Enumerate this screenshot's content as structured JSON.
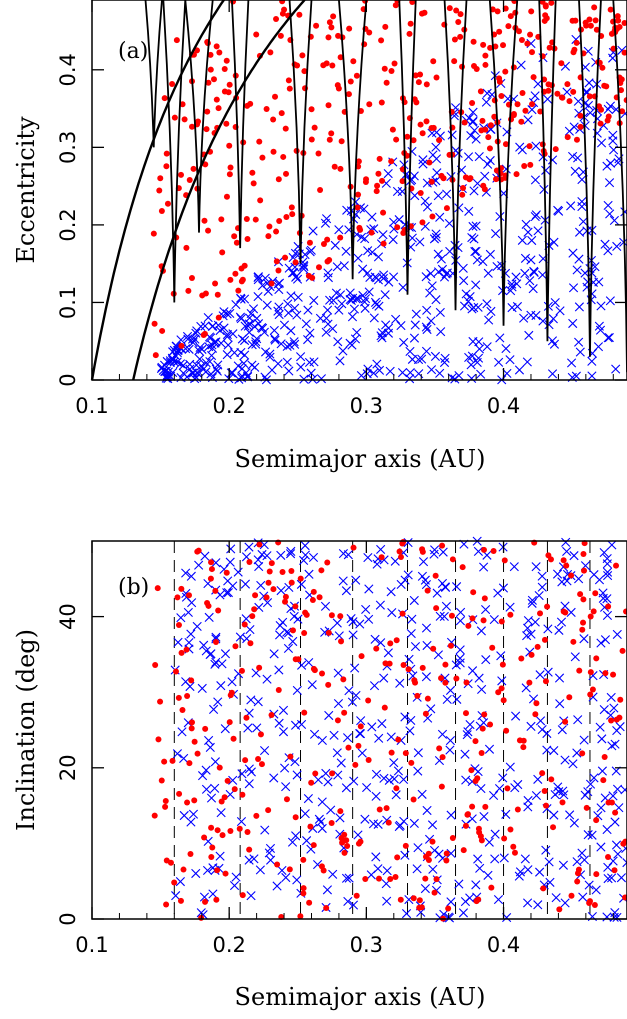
{
  "colors": {
    "high_e_points": "#ff0000",
    "low_e_points": "#0000ff",
    "curves": "#000000",
    "resonance_lines_b": "#000000"
  },
  "chart_data": [
    {
      "id": "a",
      "type": "scatter",
      "panel_label": "(a)",
      "xlabel": "Semimajor axis (AU)",
      "ylabel": "Eccentricity",
      "xlim": [
        0.1,
        0.49
      ],
      "ylim": [
        0,
        0.49
      ],
      "x_ticks": [
        0.1,
        0.2,
        0.3,
        0.4
      ],
      "x_tick_labels": [
        "0.1",
        "0.2",
        "0.3",
        "0.4"
      ],
      "y_ticks": [
        0,
        0.1,
        0.2,
        0.3,
        0.4
      ],
      "y_tick_labels": [
        "0",
        "0.1",
        "0.2",
        "0.3",
        "0.4"
      ],
      "grid": false,
      "series": [
        {
          "marker": "dot",
          "color": "#ff0000",
          "count": 430,
          "region": "upper, high eccentricity"
        },
        {
          "marker": "x",
          "color": "#0000ff",
          "count": 640,
          "region": "lower, low eccentricity"
        }
      ],
      "crossing_curves": [
        {
          "perihelion_au": 0.1
        },
        {
          "perihelion_au": 0.13
        }
      ],
      "resonance_spikes_au": [
        0.145,
        0.16,
        0.178,
        0.208,
        0.252,
        0.29,
        0.33,
        0.365,
        0.4,
        0.432,
        0.463,
        0.49
      ]
    },
    {
      "id": "b",
      "type": "scatter",
      "panel_label": "(b)",
      "xlabel": "Semimajor axis (AU)",
      "ylabel": "Inclination (deg)",
      "xlim": [
        0.1,
        0.49
      ],
      "ylim": [
        0,
        50
      ],
      "x_ticks": [
        0.1,
        0.2,
        0.3,
        0.4
      ],
      "x_tick_labels": [
        "0.1",
        "0.2",
        "0.3",
        "0.4"
      ],
      "y_ticks": [
        0,
        20,
        40
      ],
      "y_tick_labels": [
        "0",
        "20",
        "40"
      ],
      "grid": false,
      "series": [
        {
          "marker": "dot",
          "color": "#ff0000",
          "count": 360
        },
        {
          "marker": "x",
          "color": "#0000ff",
          "count": 560
        }
      ],
      "dashed_lines_au": [
        0.16,
        0.208,
        0.252,
        0.29,
        0.33,
        0.365,
        0.4,
        0.432,
        0.463,
        0.49
      ]
    }
  ]
}
